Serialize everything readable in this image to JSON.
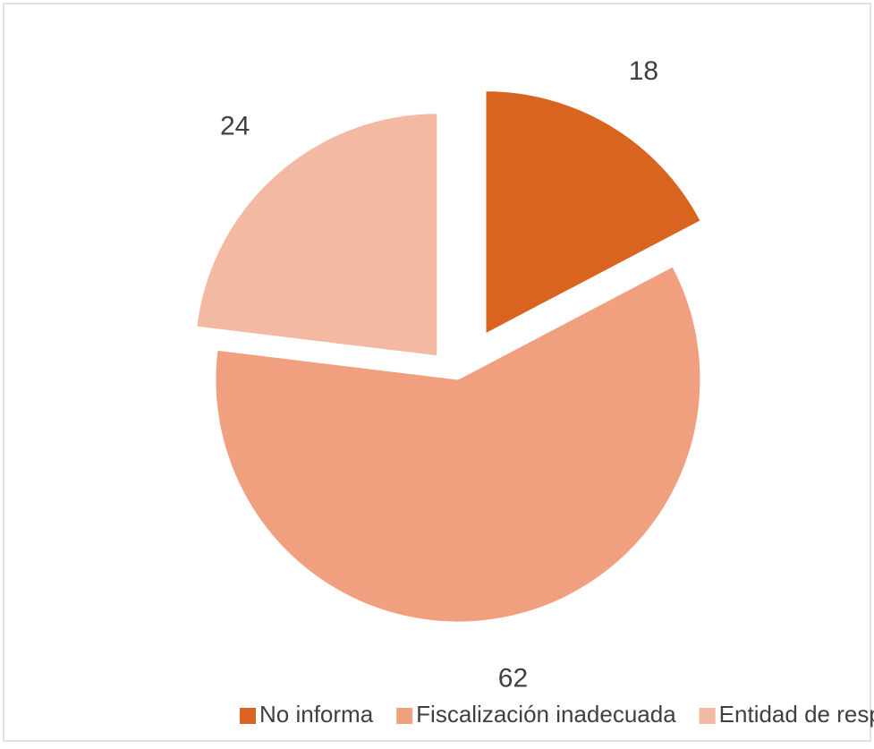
{
  "chart_data": {
    "type": "pie",
    "categories": [
      "No informa",
      "Fiscalización inadecuada",
      "Entidad de respaldo"
    ],
    "values": [
      18,
      62,
      24
    ],
    "colors": [
      "#d8641f",
      "#f0a07f",
      "#f4b9a3"
    ],
    "legend": "bottom"
  }
}
